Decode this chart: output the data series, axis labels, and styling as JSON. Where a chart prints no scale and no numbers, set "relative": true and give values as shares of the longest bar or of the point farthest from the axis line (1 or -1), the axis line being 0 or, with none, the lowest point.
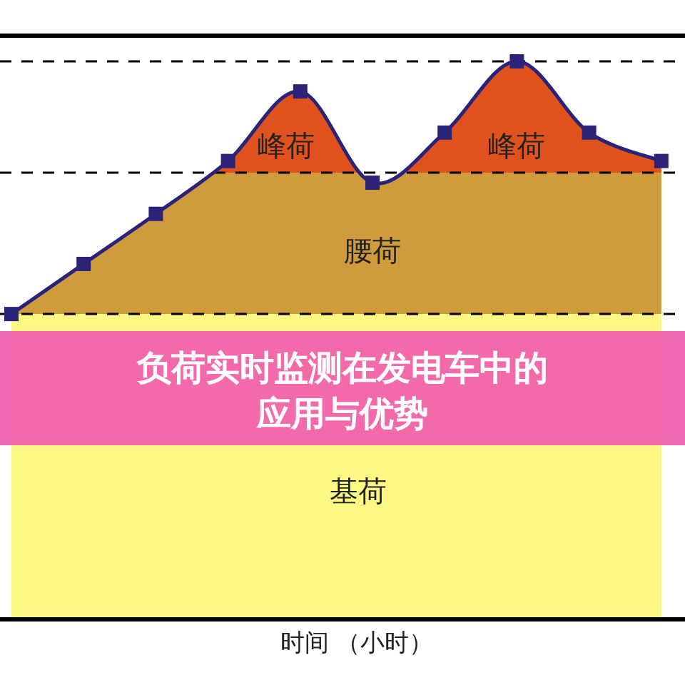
{
  "chart_data": {
    "type": "area",
    "title": "负荷实时监测在发电车中的应用与优势",
    "xlabel": "时间 （小时）",
    "relative": true,
    "marker": "square",
    "categories": [
      null,
      null,
      null,
      null,
      null,
      null,
      null,
      null,
      null,
      null
    ],
    "series": [
      {
        "color": "#2b2378",
        "values": [
          0.546,
          0.636,
          0.726,
          0.821,
          0.946,
          0.782,
          0.872,
          1,
          0.872,
          0.821
        ]
      }
    ],
    "bands": [
      {
        "axis": "y",
        "from": 0,
        "to": 0.546,
        "label": "基荷",
        "color": "#fdf784"
      },
      {
        "axis": "y",
        "from": 0.546,
        "to": 0.8,
        "label": "腰荷",
        "color": "#cf9b3c"
      },
      {
        "axis": "y",
        "from": 0.8,
        "to": 1,
        "label": "峰荷",
        "color": "#e0521e"
      }
    ],
    "ref_lines": [
      {
        "axis": "y",
        "value": 1,
        "line_style": "dashed",
        "color": "#000000"
      },
      {
        "axis": "y",
        "value": 0.8,
        "line_style": "dashed",
        "color": "#000000"
      },
      {
        "axis": "y",
        "value": 0.546,
        "line_style": "dashed",
        "color": "#000000"
      }
    ],
    "annotations": [
      "峰荷"
    ]
  }
}
